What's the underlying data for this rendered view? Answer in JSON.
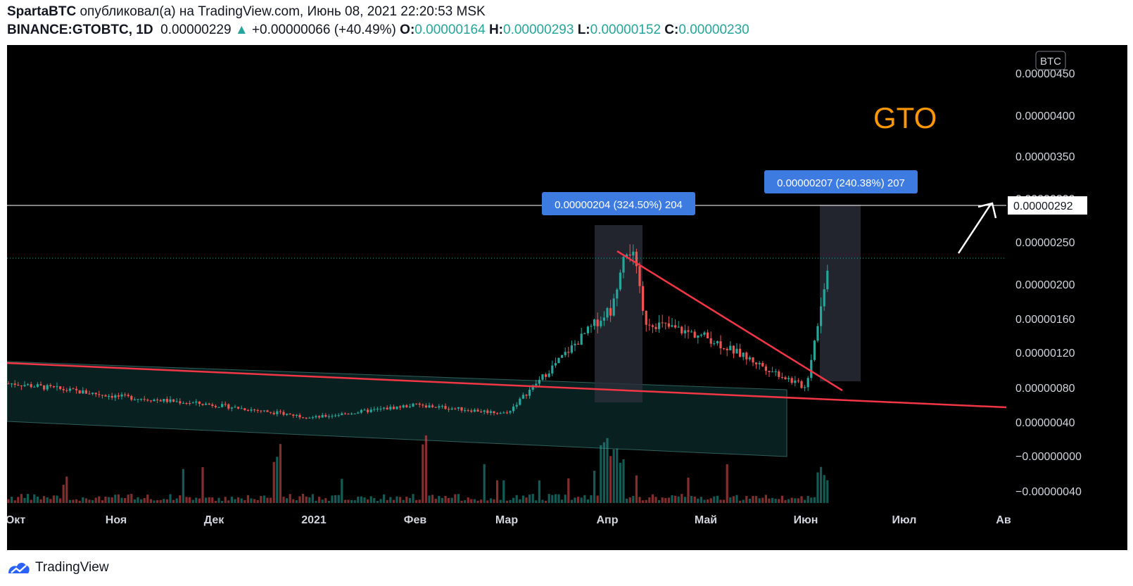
{
  "header": {
    "author": "SpartaBTC",
    "published_text": "опубликовал(а) на TradingView.com, Июнь 08, 2021 22:20:53 MSK",
    "symbol": "BINANCE:GTOBTC, 1D",
    "price": "0.00000229",
    "change": "+0.00000066 (+40.49%)",
    "o_label": "O:",
    "o_value": "0.00000164",
    "h_label": "H:",
    "h_value": "0.00000293",
    "l_label": "L:",
    "l_value": "0.00000152",
    "c_label": "C:",
    "c_value": "0.00000230"
  },
  "chart_title": "GTO",
  "currency_badge": "BTC",
  "price_tag": "0.00000292",
  "measure_labels": [
    "0.00000204 (324.50%) 204",
    "0.00000207 (240.38%) 207"
  ],
  "footer": {
    "brand": "TradingView"
  },
  "colors": {
    "up": "#26a69a",
    "down": "#ef5350",
    "trend": "#f23645",
    "title": "#ff9800",
    "measure": "#2962ff"
  },
  "chart_data": {
    "type": "candlestick",
    "title": "GTO",
    "y_axis": {
      "ticks": [
        "0.00000450",
        "0.00000400",
        "0.00000350",
        "0.00000300",
        "0.00000250",
        "0.00000200",
        "0.00000160",
        "0.00000120",
        "0.00000080",
        "0.00000040",
        "−0.00000000",
        "−0.00000040"
      ],
      "range": [
        -4e-07,
        4.5e-06
      ]
    },
    "x_axis": {
      "labels": [
        "Окт",
        "Ноя",
        "Дек",
        "2021",
        "Фев",
        "Мар",
        "Апр",
        "Май",
        "Июн",
        "Июл",
        "Ав"
      ]
    },
    "current_price": 2.92e-06,
    "last_close": 2.3e-06,
    "approx_close_path": [
      {
        "date": "Окт",
        "close": 8.5e-07
      },
      {
        "date": "Ноя",
        "close": 7e-07
      },
      {
        "date": "Дек",
        "close": 6e-07
      },
      {
        "date": "2021",
        "close": 4.5e-07
      },
      {
        "date": "Фев",
        "close": 6e-07
      },
      {
        "date": "Мар",
        "close": 5e-07
      },
      {
        "date": "Апр",
        "close": 1.7e-06
      },
      {
        "date": "Май",
        "close": 1.4e-06
      },
      {
        "date": "Июн",
        "close": 8e-07
      },
      {
        "date": "Июн 08",
        "close": 2.3e-06
      }
    ]
  }
}
